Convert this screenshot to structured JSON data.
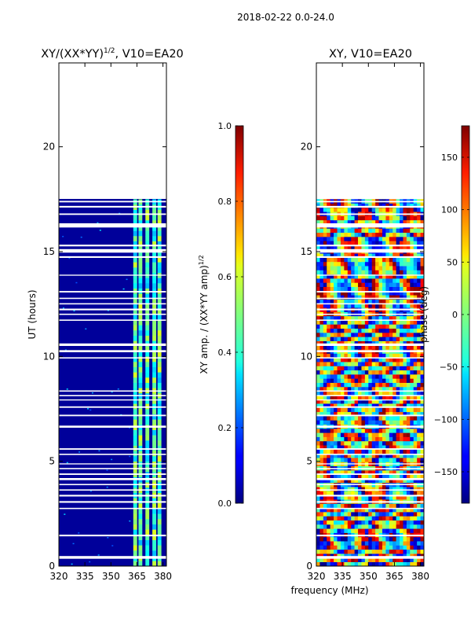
{
  "figure_title": "2018-02-22 0.0-24.0",
  "xlabel_shared": "frequency (MHz)",
  "chart_data": [
    {
      "type": "heatmap",
      "title_main": "XY/(XX*YY)",
      "title_exp": "1/2",
      "title_suffix": ", V10=EA20",
      "ylabel": "UT (hours)",
      "xlim": [
        320,
        382
      ],
      "ylim": [
        0,
        24
      ],
      "xticks": [
        320,
        335,
        350,
        365,
        380
      ],
      "yticks": [
        0,
        5,
        10,
        15,
        20
      ],
      "data_end_hour": 17.5,
      "colorbar": {
        "label_main": "XY amp. / (XX*YY amp)",
        "label_exp": "1/2",
        "range": [
          0,
          1
        ],
        "ticks": [
          "0.0",
          "0.2",
          "0.4",
          "0.6",
          "0.8",
          "1.0"
        ],
        "tick_values": [
          0,
          0.2,
          0.4,
          0.6,
          0.8,
          1.0
        ]
      },
      "colormap": "jet",
      "background_value": 0.08,
      "bright_channels_mhz": [
        364,
        367,
        371,
        375,
        378
      ]
    },
    {
      "type": "heatmap",
      "title": "XY, V10=EA20",
      "xlim": [
        320,
        382
      ],
      "ylim": [
        0,
        24
      ],
      "xticks": [
        320,
        335,
        350,
        365,
        380
      ],
      "yticks": [
        0,
        5,
        10,
        15,
        20
      ],
      "data_end_hour": 17.5,
      "colorbar": {
        "label": "phase (deg)",
        "range": [
          -180,
          180
        ],
        "ticks": [
          "150",
          "100",
          "50",
          "0",
          "−50",
          "−100",
          "−150"
        ],
        "tick_values": [
          150,
          100,
          50,
          0,
          -50,
          -100,
          -150
        ]
      },
      "colormap": "jet"
    }
  ],
  "flagged_gaps_hours": [
    [
      0.35,
      0.48
    ],
    [
      1.42,
      1.5
    ],
    [
      2.72,
      2.78
    ],
    [
      3.02,
      3.1
    ],
    [
      3.32,
      3.4
    ],
    [
      3.6,
      3.66
    ],
    [
      3.86,
      3.92
    ],
    [
      4.1,
      4.2
    ],
    [
      4.35,
      4.42
    ],
    [
      4.62,
      4.68
    ],
    [
      4.85,
      4.9
    ],
    [
      5.3,
      5.36
    ],
    [
      5.55,
      5.62
    ],
    [
      6.6,
      6.7
    ],
    [
      7.15,
      7.22
    ],
    [
      7.55,
      7.62
    ],
    [
      7.9,
      7.95
    ],
    [
      8.1,
      8.16
    ],
    [
      8.32,
      8.38
    ],
    [
      9.9,
      9.96
    ],
    [
      10.2,
      10.3
    ],
    [
      10.5,
      10.62
    ],
    [
      11.7,
      11.76
    ],
    [
      11.98,
      12.04
    ],
    [
      12.2,
      12.28
    ],
    [
      12.48,
      12.54
    ],
    [
      12.74,
      12.8
    ],
    [
      13.05,
      13.12
    ],
    [
      13.85,
      13.9
    ],
    [
      14.7,
      14.78
    ],
    [
      14.95,
      15.12
    ],
    [
      15.25,
      15.33
    ],
    [
      16.15,
      16.35
    ],
    [
      16.75,
      16.82
    ],
    [
      17.1,
      17.18
    ],
    [
      17.35,
      17.42
    ]
  ]
}
